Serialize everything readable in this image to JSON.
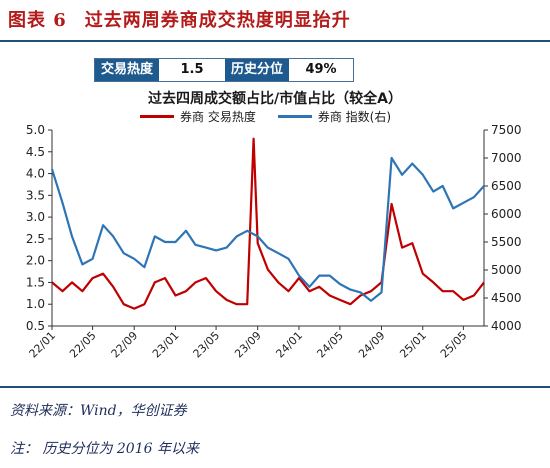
{
  "figure": {
    "label": "图表 6",
    "heading": "过去两周券商成交热度明显抬升"
  },
  "stats": {
    "heat_label": "交易热度",
    "heat_value": "1.5",
    "pct_label": "历史分位",
    "pct_value": "49%"
  },
  "footer": {
    "source": "资料来源：Wind，华创证券",
    "note": "注：  历史分位为 2016 年以来"
  },
  "colors": {
    "heat": "#c00000",
    "index": "#2e75b6",
    "accent": "#b31b1b",
    "rule": "#1f4e79"
  },
  "chart_data": {
    "type": "line",
    "title": "过去四周成交额占比/市值占比（较全A）",
    "xlabel": "",
    "ylabel_left": "",
    "ylabel_right": "",
    "ylim_left": [
      0.5,
      5.0
    ],
    "ylim_right": [
      4000,
      7500
    ],
    "yticks_left": [
      "0.5",
      "1.0",
      "1.5",
      "2.0",
      "2.5",
      "3.0",
      "3.5",
      "4.0",
      "4.5",
      "5.0"
    ],
    "yticks_right": [
      "4000",
      "4500",
      "5000",
      "5500",
      "6000",
      "6500",
      "7000",
      "7500"
    ],
    "xticks": [
      "22/01",
      "22/05",
      "22/09",
      "23/01",
      "23/05",
      "23/09",
      "24/01",
      "24/05",
      "24/09",
      "25/01",
      "25/05"
    ],
    "x_range": [
      "2022-01",
      "2025-07"
    ],
    "grid": false,
    "legend_position": "top",
    "series": [
      {
        "name": "券商 交易热度",
        "axis": "left",
        "color": "#c00000",
        "x": [
          "2022-01",
          "2022-02",
          "2022-03",
          "2022-04",
          "2022-05",
          "2022-06",
          "2022-07",
          "2022-08",
          "2022-09",
          "2022-10",
          "2022-11",
          "2022-12",
          "2023-01",
          "2023-02",
          "2023-03",
          "2023-04",
          "2023-05",
          "2023-06",
          "2023-07",
          "2023-08",
          "2023-08-20",
          "2023-09",
          "2023-10",
          "2023-11",
          "2023-12",
          "2024-01",
          "2024-02",
          "2024-03",
          "2024-04",
          "2024-05",
          "2024-06",
          "2024-07",
          "2024-08",
          "2024-09",
          "2024-10",
          "2024-11",
          "2024-12",
          "2025-01",
          "2025-02",
          "2025-03",
          "2025-04",
          "2025-05",
          "2025-06",
          "2025-07"
        ],
        "values": [
          1.5,
          1.3,
          1.5,
          1.3,
          1.6,
          1.7,
          1.4,
          1.0,
          0.9,
          1.0,
          1.5,
          1.6,
          1.2,
          1.3,
          1.5,
          1.6,
          1.3,
          1.1,
          1.0,
          1.0,
          4.8,
          2.4,
          1.8,
          1.5,
          1.3,
          1.6,
          1.3,
          1.4,
          1.2,
          1.1,
          1.0,
          1.2,
          1.3,
          1.5,
          3.3,
          2.3,
          2.4,
          1.7,
          1.5,
          1.3,
          1.3,
          1.1,
          1.2,
          1.5
        ]
      },
      {
        "name": "券商 指数(右)",
        "axis": "right",
        "color": "#2e75b6",
        "x": [
          "2022-01",
          "2022-02",
          "2022-03",
          "2022-04",
          "2022-05",
          "2022-06",
          "2022-07",
          "2022-08",
          "2022-09",
          "2022-10",
          "2022-11",
          "2022-12",
          "2023-01",
          "2023-02",
          "2023-03",
          "2023-04",
          "2023-05",
          "2023-06",
          "2023-07",
          "2023-08",
          "2023-09",
          "2023-10",
          "2023-11",
          "2023-12",
          "2024-01",
          "2024-02",
          "2024-03",
          "2024-04",
          "2024-05",
          "2024-06",
          "2024-07",
          "2024-08",
          "2024-09",
          "2024-10",
          "2024-11",
          "2024-12",
          "2025-01",
          "2025-02",
          "2025-03",
          "2025-04",
          "2025-05",
          "2025-06",
          "2025-07"
        ],
        "values": [
          6800,
          6200,
          5600,
          5100,
          5200,
          5800,
          5600,
          5300,
          5200,
          5050,
          5600,
          5500,
          5500,
          5700,
          5450,
          5400,
          5350,
          5400,
          5600,
          5700,
          5600,
          5400,
          5300,
          5200,
          4900,
          4700,
          4900,
          4900,
          4750,
          4650,
          4600,
          4450,
          4600,
          7000,
          6700,
          6900,
          6700,
          6400,
          6500,
          6100,
          6200,
          6300,
          6500
        ]
      }
    ]
  }
}
